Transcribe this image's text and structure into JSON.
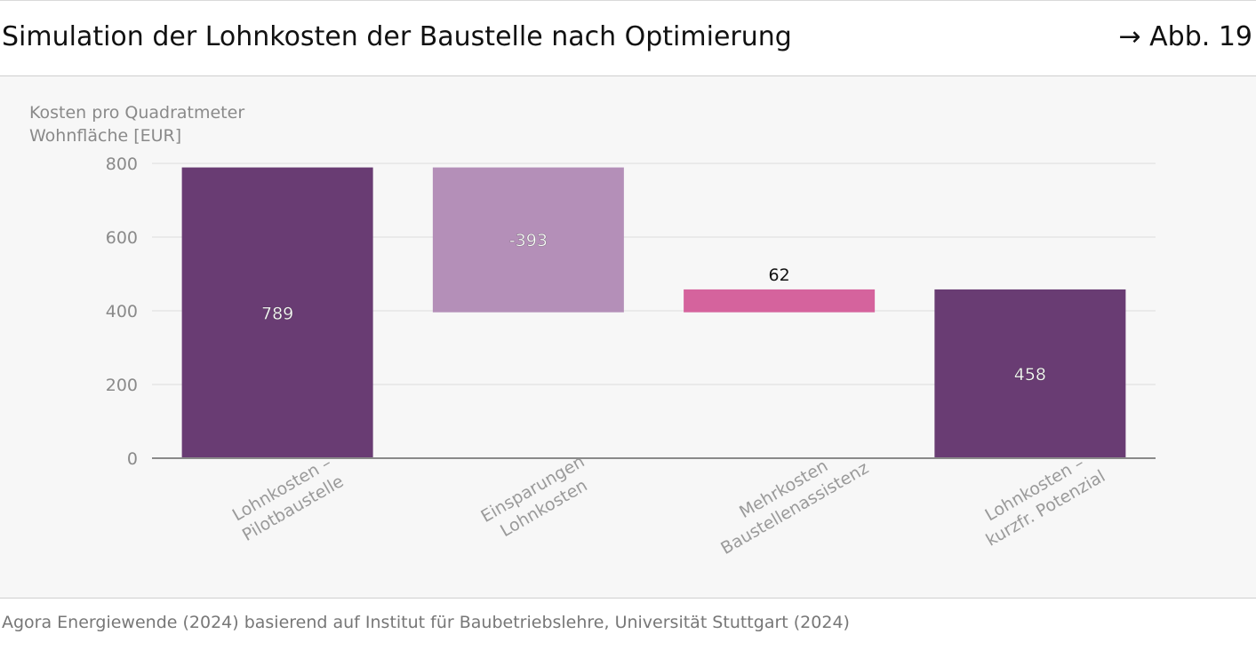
{
  "header": {
    "title": "Simulation der Lohnkosten der Baustelle nach Optimierung",
    "figure_ref": "→ Abb. 19"
  },
  "footer": {
    "source": "Agora Energiewende (2024) basierend auf Institut für Baubetriebslehre, Universität Stuttgart (2024)"
  },
  "chart_data": {
    "type": "bar",
    "subtype": "waterfall",
    "ylabel_lines": [
      "Kosten pro Quadratmeter",
      "Wohnfläche [EUR]"
    ],
    "ylim": [
      0,
      800
    ],
    "yticks": [
      0,
      200,
      400,
      600,
      800
    ],
    "grid": true,
    "categories": [
      [
        "Lohnkosten –",
        "Pilotbaustelle"
      ],
      [
        "Einsparungen",
        "Lohnkosten"
      ],
      [
        "Mehrkosten",
        "Baustellenassistenz"
      ],
      [
        "Lohnkosten –",
        "kurzfr. Potenzial"
      ]
    ],
    "bars": [
      {
        "start": 0,
        "end": 789,
        "label": "789",
        "color": "#693c73",
        "label_color": "#ffffff",
        "label_pos": "inside"
      },
      {
        "start": 789,
        "end": 396,
        "label": "-393",
        "color": "#b48fb8",
        "label_color": "#ffffff",
        "label_pos": "inside"
      },
      {
        "start": 396,
        "end": 458,
        "label": "62",
        "color": "#d5639d",
        "label_color": "#111111",
        "label_pos": "above"
      },
      {
        "start": 0,
        "end": 458,
        "label": "458",
        "color": "#693c73",
        "label_color": "#ffffff",
        "label_pos": "inside"
      }
    ],
    "colors": {
      "grid": "#e6e6e6",
      "axis": "#8a8a8a",
      "tick_label": "#8a8a8a",
      "category_label": "#9a9a9a"
    }
  }
}
